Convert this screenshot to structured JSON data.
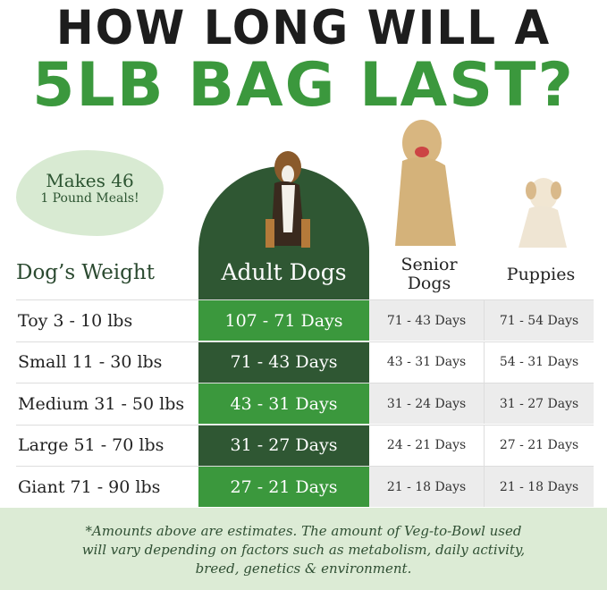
{
  "title": {
    "line1": "HOW LONG WILL A",
    "line2": "5LB BAG LAST?"
  },
  "badge": {
    "line1": "Makes 46",
    "line2": "1 Pound Meals!"
  },
  "columns": {
    "weight": "Dog’s Weight",
    "adult": "Adult Dogs",
    "senior": "Senior Dogs",
    "puppies": "Puppies"
  },
  "rows": [
    {
      "weight": "Toy 3 - 10 lbs",
      "adult": "107 - 71 Days",
      "senior": "71 - 43 Days",
      "puppies": "71 - 54 Days"
    },
    {
      "weight": "Small 11 - 30 lbs",
      "adult": "71 - 43 Days",
      "senior": "43 - 31 Days",
      "puppies": "54 - 31 Days"
    },
    {
      "weight": "Medium 31 - 50 lbs",
      "adult": "43 - 31 Days",
      "senior": "31 - 24 Days",
      "puppies": "31 - 27 Days"
    },
    {
      "weight": "Large 51 - 70 lbs",
      "adult": "31 - 27 Days",
      "senior": "24 - 21 Days",
      "puppies": "27 - 21 Days"
    },
    {
      "weight": "Giant 71 - 90 lbs",
      "adult": "27 - 21 Days",
      "senior": "21 - 18 Days",
      "puppies": "21 - 18 Days"
    }
  ],
  "footnote": "*Amounts above are estimates. The amount of Veg-to-Bowl used will vary depending on factors such as metabolism, daily activity, breed, genetics & environment.",
  "colors": {
    "brand_green": "#3b983d",
    "dark_green": "#2f5733",
    "light_green": "#dcebd5"
  }
}
